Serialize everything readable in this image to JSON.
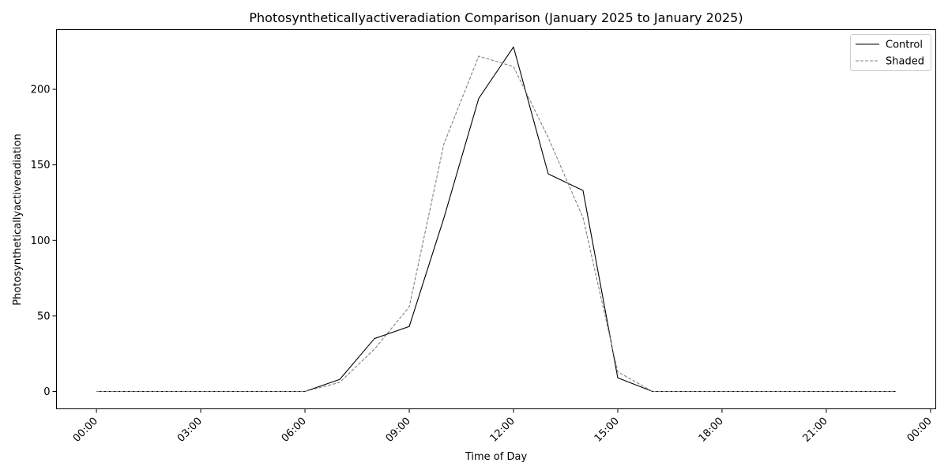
{
  "chart_data": {
    "type": "line",
    "title": "Photosyntheticallyactiveradiation Comparison (January 2025 to January 2025)",
    "xlabel": "Time of Day",
    "ylabel": "Photosyntheticallyactiveradiation",
    "x_hours": [
      0,
      1,
      2,
      3,
      4,
      5,
      6,
      7,
      8,
      9,
      10,
      11,
      12,
      13,
      14,
      15,
      16,
      17,
      18,
      19,
      20,
      21,
      22,
      23
    ],
    "x_ticks": [
      {
        "hour": 0,
        "label": "00:00"
      },
      {
        "hour": 3,
        "label": "03:00"
      },
      {
        "hour": 6,
        "label": "06:00"
      },
      {
        "hour": 9,
        "label": "09:00"
      },
      {
        "hour": 12,
        "label": "12:00"
      },
      {
        "hour": 15,
        "label": "15:00"
      },
      {
        "hour": 18,
        "label": "18:00"
      },
      {
        "hour": 21,
        "label": "21:00"
      },
      {
        "hour": 24,
        "label": "00:00"
      }
    ],
    "y_ticks": [
      0,
      50,
      100,
      150,
      200
    ],
    "xlim": [
      -1.15,
      24.15
    ],
    "ylim": [
      -11.5,
      239.5
    ],
    "grid": false,
    "legend_position": "top-right",
    "series": [
      {
        "name": "Control",
        "color": "#000000",
        "dash": "solid",
        "values": [
          0,
          0,
          0,
          0,
          0,
          0,
          0,
          8,
          35,
          43,
          115,
          194,
          228,
          144,
          133,
          9,
          0,
          0,
          0,
          0,
          0,
          0,
          0,
          0
        ]
      },
      {
        "name": "Shaded",
        "color": "#808080",
        "dash": "dashed",
        "values": [
          0,
          0,
          0,
          0,
          0,
          0,
          0,
          6,
          28,
          56,
          164,
          222,
          215,
          168,
          115,
          13,
          0,
          0,
          0,
          0,
          0,
          0,
          0,
          0
        ]
      }
    ]
  }
}
